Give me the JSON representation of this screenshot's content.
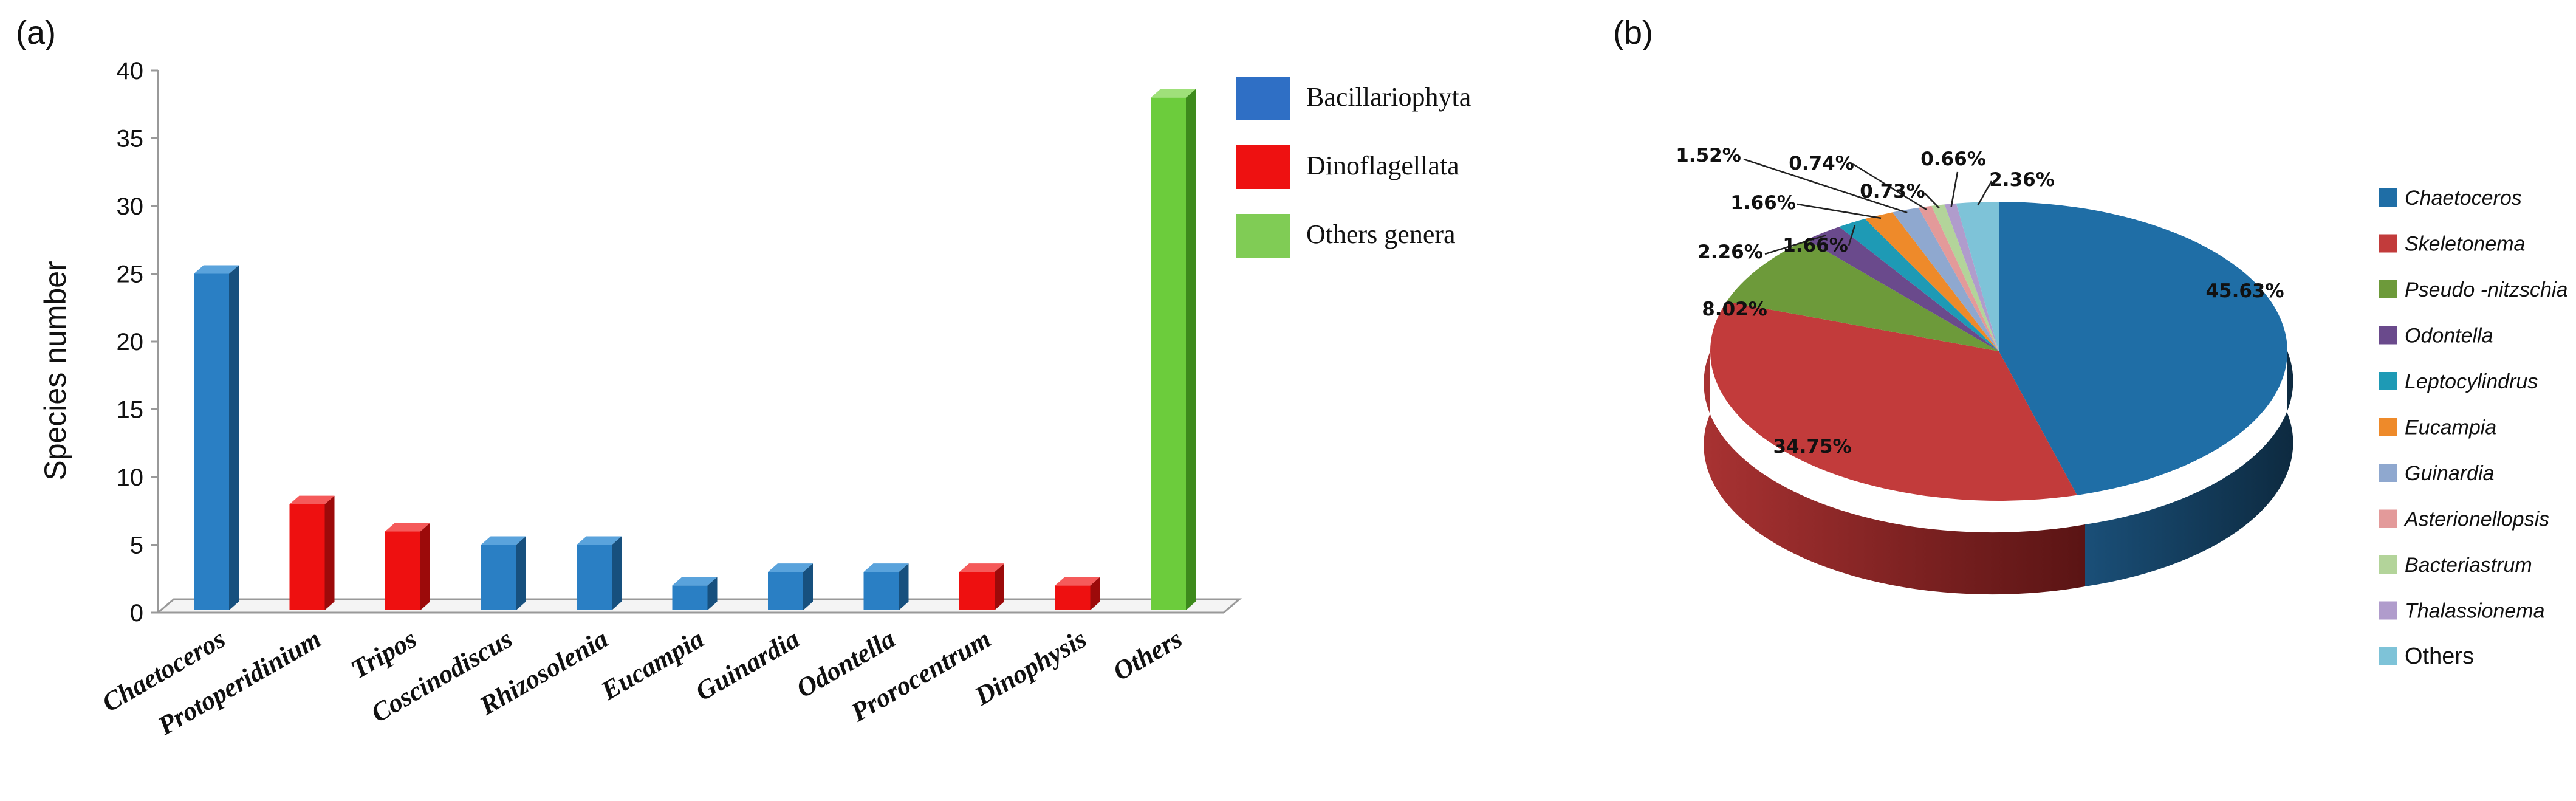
{
  "panels": {
    "a_label": "(a)",
    "b_label": "(b)"
  },
  "chart_data": [
    {
      "type": "bar",
      "title": "",
      "xlabel": "",
      "ylabel": "Species number",
      "ylim": [
        0,
        40
      ],
      "yticks": [
        0,
        5,
        10,
        15,
        20,
        25,
        30,
        35,
        40
      ],
      "grid": false,
      "legend_position": "right",
      "categories": [
        "Chaetoceros",
        "Protoperidinium",
        "Tripos",
        "Coscinodiscus",
        "Rhizosolenia",
        "Eucampia",
        "Guinardia",
        "Odontella",
        "Prorocentrum",
        "Dinophysis",
        "Others"
      ],
      "values": [
        25,
        8,
        6,
        5,
        5,
        2,
        3,
        3,
        3,
        2,
        38
      ],
      "groups": [
        "Bacillariophyta",
        "Dinoflagellata",
        "Dinoflagellata",
        "Bacillariophyta",
        "Bacillariophyta",
        "Bacillariophyta",
        "Bacillariophyta",
        "Bacillariophyta",
        "Dinoflagellata",
        "Dinoflagellata",
        "Others genera"
      ],
      "legend": [
        {
          "name": "Bacillariophyta",
          "color": "#2f6fc5"
        },
        {
          "name": "Dinoflagellata",
          "color": "#ee1111"
        },
        {
          "name": "Others genera",
          "color": "#80cc55"
        }
      ],
      "bar_colors": {
        "Bacillariophyta": {
          "front": "#2a7fc4",
          "side": "#17507e",
          "top": "#5aa3dc"
        },
        "Dinoflagellata": {
          "front": "#ee1010",
          "side": "#9c0a0a",
          "top": "#f55a5a"
        },
        "Others genera": {
          "front": "#6ccc3c",
          "side": "#3d8a1c",
          "top": "#9fe07a"
        }
      }
    },
    {
      "type": "pie",
      "title": "",
      "legend_position": "right",
      "slices": [
        {
          "name": "Chaetoceros",
          "value": 45.63,
          "label": "45.63%",
          "color": "#1f6ea6"
        },
        {
          "name": "Skeletonema",
          "value": 34.75,
          "label": "34.75%",
          "color": "#c23b3b"
        },
        {
          "name": "Pseudo -nitzschia",
          "value": 8.02,
          "label": "8.02%",
          "color": "#6d9a3a"
        },
        {
          "name": "Odontella",
          "value": 2.26,
          "label": "2.26%",
          "color": "#6a4a8c"
        },
        {
          "name": "Leptocylindrus",
          "value": 1.66,
          "label": "1.66%",
          "color": "#1e9ab5"
        },
        {
          "name": "Eucampia",
          "value": 1.66,
          "label": "1.66%",
          "color": "#ee8a2a"
        },
        {
          "name": "Guinardia",
          "value": 1.52,
          "label": "1.52%",
          "color": "#8fa8cf"
        },
        {
          "name": "Asterionellopsis",
          "value": 0.74,
          "label": "0.74%",
          "color": "#e39a9a"
        },
        {
          "name": "Bacteriastrum",
          "value": 0.73,
          "label": "0.73%",
          "color": "#b3d49a"
        },
        {
          "name": "Thalassionema",
          "value": 0.66,
          "label": "0.66%",
          "color": "#b09ccc"
        },
        {
          "name": "Others",
          "value": 2.36,
          "label": "2.36%",
          "color": "#7ec3d8"
        }
      ]
    }
  ]
}
